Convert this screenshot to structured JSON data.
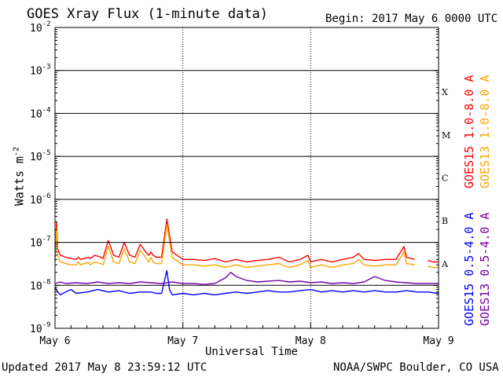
{
  "header": {
    "title": "GOES Xray Flux (1-minute data)",
    "begin": "Begin:  2017 May 6 0000 UTC"
  },
  "footer": {
    "updated": "Updated 2017 May  8 23:59:12 UTC",
    "credit": "NOAA/SWPC Boulder, CO USA"
  },
  "chart_data": {
    "type": "line",
    "title": "GOES Xray Flux (1-minute data)",
    "xlabel": "Universal Time",
    "ylabel": "Watts m",
    "ylabel_sup": "-2",
    "yscale": "log",
    "ylim": [
      1e-09,
      0.01
    ],
    "xlim": [
      0,
      72
    ],
    "x_unit": "hours since 2017 May 6 0000 UTC",
    "grid": true,
    "legend_position": "right, rotated vertical",
    "x_ticks": [
      {
        "x": 0,
        "label": "May 6"
      },
      {
        "x": 24,
        "label": "May 7"
      },
      {
        "x": 48,
        "label": "May 8"
      },
      {
        "x": 72,
        "label": "May 9"
      }
    ],
    "y_ticks": [
      {
        "exp": -2,
        "label": "10",
        "sup": "-2"
      },
      {
        "exp": -3,
        "label": "10",
        "sup": "-3"
      },
      {
        "exp": -4,
        "label": "10",
        "sup": "-4"
      },
      {
        "exp": -5,
        "label": "10",
        "sup": "-5"
      },
      {
        "exp": -6,
        "label": "10",
        "sup": "-6"
      },
      {
        "exp": -7,
        "label": "10",
        "sup": "-7"
      },
      {
        "exp": -8,
        "label": "10",
        "sup": "-8"
      },
      {
        "exp": -9,
        "label": "10",
        "sup": "-9"
      }
    ],
    "flare_classes": [
      {
        "label": "X",
        "exp": -3.5
      },
      {
        "label": "M",
        "exp": -4.5
      },
      {
        "label": "C",
        "exp": -5.5
      },
      {
        "label": "B",
        "exp": -6.5
      },
      {
        "label": "A",
        "exp": -7.5
      }
    ],
    "series": [
      {
        "name": "GOES15 1.0-8.0 A",
        "color": "#ff0000",
        "x": [
          0,
          0.3,
          0.5,
          1,
          2,
          3,
          4,
          4.4,
          4.8,
          5.5,
          6.3,
          6.6,
          7.5,
          8.6,
          9,
          10,
          11,
          12,
          13,
          14,
          15,
          16,
          17,
          17.6,
          18,
          18.4,
          19,
          20,
          21,
          22,
          24,
          26,
          28,
          30,
          32,
          34,
          36,
          38,
          40,
          42,
          44,
          46,
          47.5,
          48,
          50,
          52,
          54,
          56,
          57,
          58,
          60,
          62,
          64,
          65.5,
          66,
          67.5,
          69,
          70,
          71,
          72
        ],
        "y": [
          4.5e-08,
          3e-07,
          7e-08,
          5e-08,
          4.5e-08,
          4.2e-08,
          4e-08,
          4.5e-08,
          4e-08,
          4.2e-08,
          4.5e-08,
          4.2e-08,
          5e-08,
          4.5e-08,
          4.2e-08,
          1.1e-07,
          5e-08,
          4.5e-08,
          1e-07,
          5e-08,
          4.5e-08,
          9e-08,
          6e-08,
          5e-08,
          6e-08,
          5e-08,
          4.5e-08,
          4.5e-08,
          3.5e-07,
          6e-08,
          4e-08,
          4e-08,
          3.8e-08,
          4.2e-08,
          3.5e-08,
          4e-08,
          3.5e-08,
          3.8e-08,
          4e-08,
          4.5e-08,
          3.5e-08,
          4e-08,
          5e-08,
          3.5e-08,
          4e-08,
          3.5e-08,
          4e-08,
          4.5e-08,
          5.5e-08,
          4e-08,
          3.8e-08,
          4e-08,
          4e-08,
          8e-08,
          4.5e-08,
          4e-08,
          3.5e-08,
          3.8e-08,
          3.5e-08,
          3.5e-08
        ],
        "gaps": [
          [
            68.2,
            69.8
          ]
        ]
      },
      {
        "name": "GOES13 1.0-8.0 A",
        "color": "#ffa500",
        "x": [
          0,
          0.3,
          0.5,
          1,
          2,
          3,
          4,
          4.4,
          4.8,
          5.5,
          6.3,
          6.6,
          7.5,
          8.6,
          9,
          10,
          11,
          12,
          13,
          14,
          15,
          16,
          17,
          17.6,
          18,
          18.4,
          19,
          20,
          21,
          22,
          24,
          26,
          28,
          30,
          32,
          34,
          36,
          38,
          40,
          42,
          44,
          46,
          47.5,
          48,
          50,
          52,
          54,
          56,
          57,
          58,
          60,
          62,
          64,
          65.5,
          66,
          67.5,
          69,
          70,
          71,
          72
        ],
        "y": [
          3.5e-08,
          2.2e-07,
          5e-08,
          3.5e-08,
          3.2e-08,
          3e-08,
          3e-08,
          3.5e-08,
          3e-08,
          3.2e-08,
          3.4e-08,
          3e-08,
          3.5e-08,
          3.2e-08,
          3e-08,
          8e-08,
          3.5e-08,
          3.2e-08,
          7e-08,
          3.5e-08,
          3.2e-08,
          6.5e-08,
          4.5e-08,
          3.5e-08,
          4.5e-08,
          3.5e-08,
          3.2e-08,
          3.2e-08,
          2.6e-07,
          4.5e-08,
          3e-08,
          3e-08,
          2.8e-08,
          3e-08,
          2.6e-08,
          3e-08,
          2.6e-08,
          2.8e-08,
          3e-08,
          3.2e-08,
          2.6e-08,
          3e-08,
          3.8e-08,
          2.6e-08,
          3e-08,
          2.6e-08,
          3e-08,
          3.2e-08,
          4e-08,
          3e-08,
          2.8e-08,
          3e-08,
          3e-08,
          6e-08,
          3.2e-08,
          3e-08,
          2.6e-08,
          2.8e-08,
          2.6e-08,
          2.6e-08
        ],
        "gaps": [
          [
            68.2,
            69.8
          ]
        ]
      },
      {
        "name": "GOES15 0.5-4.0 A",
        "color": "#0000ff",
        "x": [
          0,
          0.5,
          1,
          2,
          3,
          4,
          6,
          8,
          10,
          12,
          14,
          16,
          18,
          19,
          20,
          21,
          21.5,
          22,
          24,
          26,
          28,
          30,
          32,
          34,
          36,
          38,
          40,
          42,
          44,
          46,
          48,
          50,
          52,
          54,
          56,
          58,
          60,
          62,
          64,
          66,
          68,
          70,
          72
        ],
        "y": [
          9e-09,
          7e-09,
          6e-09,
          7e-09,
          8e-09,
          6.5e-09,
          7e-09,
          8e-09,
          7e-09,
          7.5e-09,
          6.5e-09,
          7e-09,
          7e-09,
          6.5e-09,
          6.5e-09,
          2.2e-08,
          8e-09,
          6e-09,
          6.5e-09,
          6e-09,
          6.5e-09,
          6e-09,
          6.5e-09,
          7e-09,
          6.5e-09,
          7e-09,
          7.5e-09,
          7e-09,
          7e-09,
          7.5e-09,
          8e-09,
          7e-09,
          7.5e-09,
          7e-09,
          7.5e-09,
          7e-09,
          7.5e-09,
          7e-09,
          7e-09,
          7.5e-09,
          7e-09,
          7e-09,
          6.5e-09
        ],
        "gaps": [
          [
            68.2,
            69.8
          ]
        ]
      },
      {
        "name": "GOES13 0.5-4.0 A",
        "color": "#7700aa",
        "x": [
          0,
          1,
          2,
          4,
          6,
          8,
          10,
          12,
          14,
          16,
          18,
          20,
          22,
          24,
          26,
          28,
          30,
          32,
          33,
          34,
          36,
          38,
          40,
          42,
          44,
          46,
          48,
          50,
          52,
          54,
          56,
          58,
          60,
          62,
          64,
          66,
          68,
          70,
          72
        ],
        "y": [
          1.1e-08,
          1.2e-08,
          1.1e-08,
          1.15e-08,
          1.1e-08,
          1.2e-08,
          1.1e-08,
          1.15e-08,
          1.1e-08,
          1.2e-08,
          1.15e-08,
          1.1e-08,
          1.2e-08,
          1.1e-08,
          1.1e-08,
          1.05e-08,
          1.1e-08,
          1.5e-08,
          2e-08,
          1.6e-08,
          1.3e-08,
          1.2e-08,
          1.25e-08,
          1.3e-08,
          1.2e-08,
          1.25e-08,
          1.15e-08,
          1.2e-08,
          1.1e-08,
          1.15e-08,
          1.1e-08,
          1.2e-08,
          1.6e-08,
          1.3e-08,
          1.2e-08,
          1.15e-08,
          1.1e-08,
          1.1e-08,
          1.1e-08
        ],
        "gaps": [
          [
            68.2,
            69.8
          ]
        ]
      }
    ]
  }
}
